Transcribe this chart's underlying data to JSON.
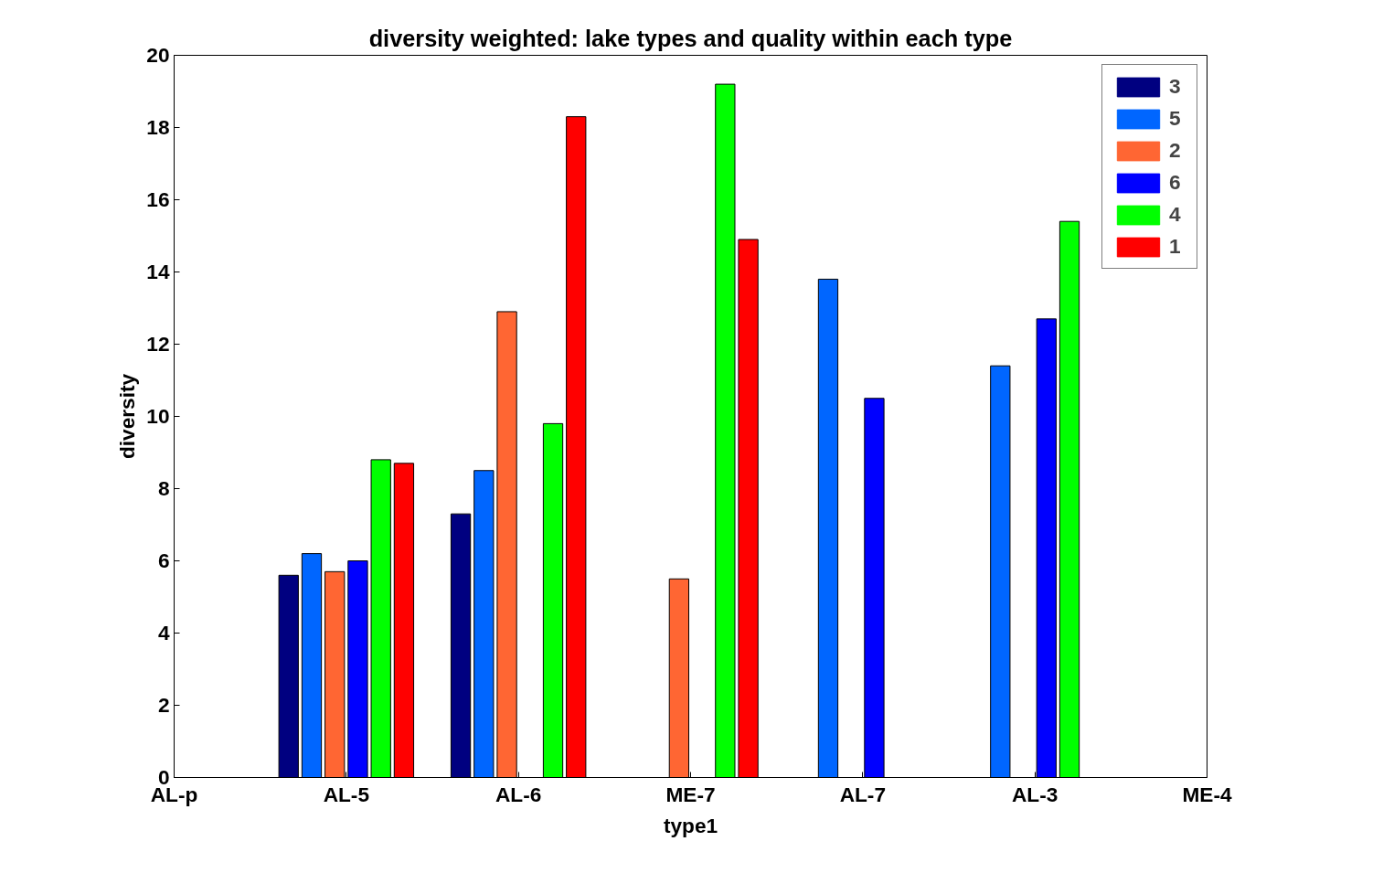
{
  "chart_data": {
    "type": "bar",
    "title": "diversity weighted: lake types and quality within each type",
    "xlabel": "type1",
    "ylabel": "diversity",
    "categories": [
      "AL-p",
      "AL-5",
      "AL-6",
      "ME-7",
      "AL-7",
      "AL-3",
      "ME-4"
    ],
    "series": [
      {
        "name": "3",
        "color": "#000080",
        "values": [
          0,
          5.6,
          7.3,
          0,
          0,
          0,
          0
        ]
      },
      {
        "name": "5",
        "color": "#0066ff",
        "values": [
          0,
          6.2,
          8.5,
          0,
          13.8,
          11.4,
          0
        ]
      },
      {
        "name": "2",
        "color": "#ff6633",
        "values": [
          0,
          5.7,
          12.9,
          5.5,
          0,
          0,
          0
        ]
      },
      {
        "name": "6",
        "color": "#0000ff",
        "values": [
          0,
          6.0,
          0,
          0,
          10.5,
          12.7,
          0
        ]
      },
      {
        "name": "4",
        "color": "#00ff00",
        "values": [
          0,
          8.8,
          9.8,
          19.2,
          0,
          15.4,
          0
        ]
      },
      {
        "name": "1",
        "color": "#ff0000",
        "values": [
          0,
          8.7,
          18.3,
          14.9,
          0,
          0,
          0
        ]
      }
    ],
    "ylim": [
      0,
      20
    ],
    "yticks": [
      0,
      2,
      4,
      6,
      8,
      10,
      12,
      14,
      16,
      18,
      20
    ],
    "legend": "top right"
  }
}
